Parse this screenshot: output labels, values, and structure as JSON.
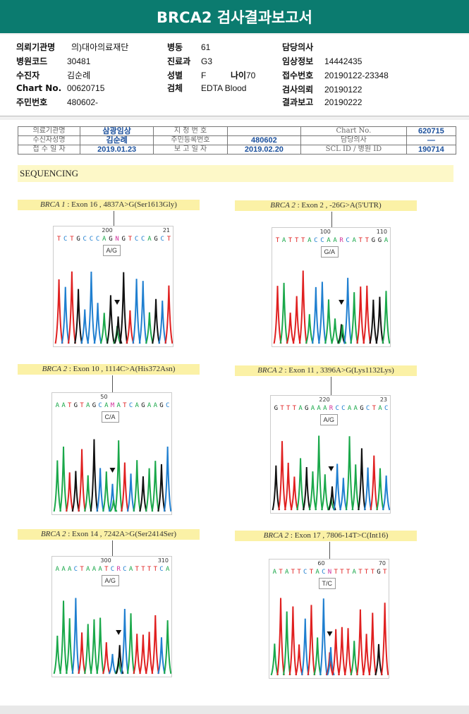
{
  "title": "BRCA2 검사결과보고서",
  "info": {
    "institution": {
      "label": "의뢰기관명",
      "value": "의)대아의료재단"
    },
    "hospital_code": {
      "label": "병원코드",
      "value": "30481"
    },
    "patient": {
      "label": "수진자",
      "value": "김순례"
    },
    "chart_no": {
      "label": "Chart No.",
      "value": "00620715"
    },
    "resident_no": {
      "label": "주민번호",
      "value": "480602-"
    },
    "ward": {
      "label": "병동",
      "value": "61"
    },
    "department": {
      "label": "진료과",
      "value": "G3"
    },
    "sex": {
      "label": "성별",
      "value": "F"
    },
    "age": {
      "label": "나이",
      "value": "70"
    },
    "specimen": {
      "label": "검체",
      "value": "EDTA Blood"
    },
    "doctor": {
      "label": "담당의사",
      "value": ""
    },
    "clinical": {
      "label": "임상정보",
      "value": "14442435"
    },
    "receipt_no": {
      "label": "접수번호",
      "value": "20190122-23348"
    },
    "request_date": {
      "label": "검사의뢰",
      "value": "20190122"
    },
    "report_date": {
      "label": "결과보고",
      "value": "20190222"
    }
  },
  "report_table": {
    "r1": [
      "의료기관명",
      "삼광임상",
      "지 정 번 호",
      "",
      "Chart No.",
      "620715"
    ],
    "r2": [
      "수신자성명",
      "김순례",
      "주민등록번호",
      "480602",
      "담당의사",
      "—"
    ],
    "r3": [
      "접 수 일 자",
      "2019.01.23",
      "보 고 일 자",
      "2019.02.20",
      "SCL ID / 병원 ID",
      "190714"
    ]
  },
  "section": "SEQUENCING",
  "variants": [
    {
      "gene": "BRCA 1",
      "desc": " : Exon 16 , 4837A>G(Ser1613Gly)",
      "pos1": "200",
      "pos2": "21",
      "seq": "TCTGCCCAGNGTCCAGCT",
      "call": "A/G"
    },
    {
      "gene": "BRCA 2",
      "desc": " : Exon 2 , -26G>A(5'UTR)",
      "pos1": "100",
      "pos2": "110",
      "seq": "TATTTACCAARCATTGGA",
      "call": "G/A"
    },
    {
      "gene": "BRCA 2",
      "desc": " : Exon 10 , 1114C>A(His372Asn)",
      "pos1": "50",
      "pos2": "",
      "seq": "AATGTAGCAMATCAGAAGC",
      "call": "C/A"
    },
    {
      "gene": "BRCA 2",
      "desc": " : Exon 11 , 3396A>G(Lys1132Lys)",
      "pos1": "220",
      "pos2": "23",
      "seq": "GTTTAGAAARCCAAGCTAC",
      "call": "A/G"
    },
    {
      "gene": "BRCA 2",
      "desc": " : Exon 14 , 7242A>G(Ser2414Ser)",
      "pos1": "300",
      "pos2": "310",
      "seq": "AAACTAAATCRCATTTTCA",
      "call": "A/G"
    },
    {
      "gene": "BRCA 2",
      "desc": " : Exon 17 , 7806-14T>C(Int16)",
      "pos1": "60",
      "pos2": "70",
      "seq": "ATATTCTACNTTTATTTGT",
      "call": "T/C"
    }
  ],
  "colors": {
    "header": "#0b7b6f",
    "A": "#1aa84a",
    "C": "#1f7fd0",
    "G": "#111111",
    "T": "#e02020",
    "N": "#d0309a"
  }
}
